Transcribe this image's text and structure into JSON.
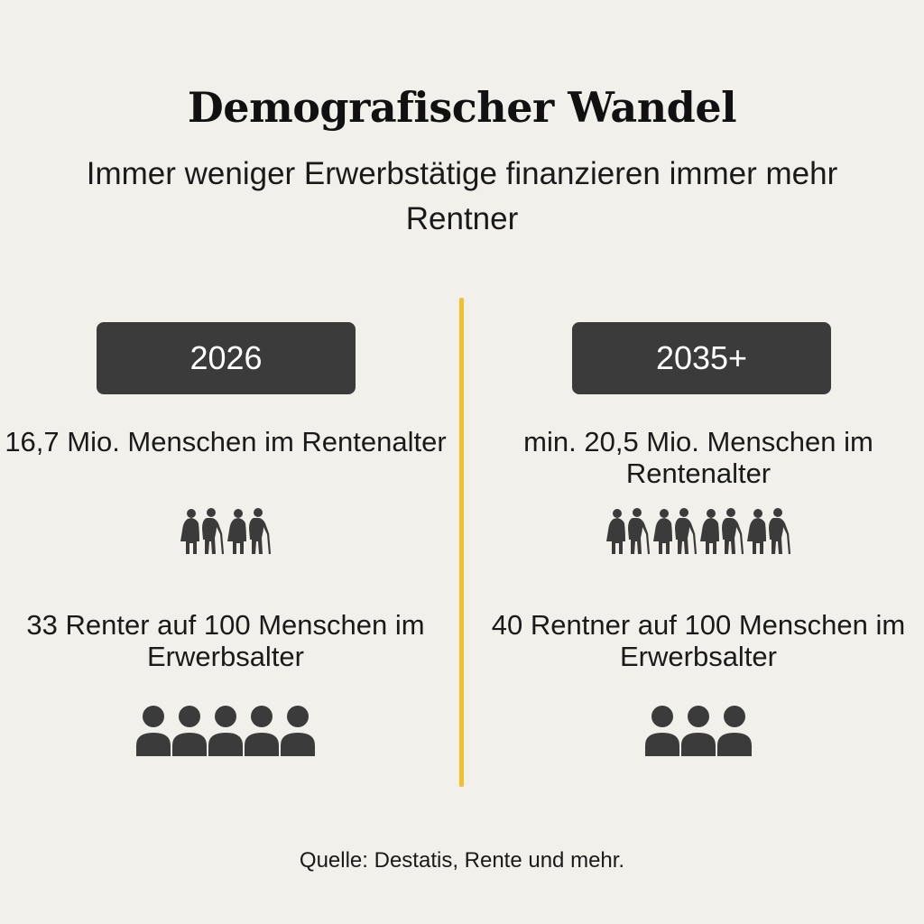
{
  "title": "Demografischer Wandel",
  "subtitle": "Immer weniger Erwerbstätige finanzieren immer mehr Rentner",
  "accent_color": "#f2c12a",
  "icon_color": "#3b3b3b",
  "columns": [
    {
      "year": "2026",
      "rentner_text": "16,7 Mio. Menschen im Rentenalter",
      "elderly_couple_icons": 2,
      "ratio_text": "33 Renter auf 100 Menschen im Erwerbsalter",
      "person_icons": 5
    },
    {
      "year": "2035+",
      "rentner_text": "min. 20,5 Mio. Menschen im Rentenalter",
      "elderly_couple_icons": 4,
      "ratio_text": "40 Rentner auf 100 Menschen im Erwerbsalter",
      "person_icons": 3
    }
  ],
  "source": "Quelle: Destatis, Rente und mehr."
}
